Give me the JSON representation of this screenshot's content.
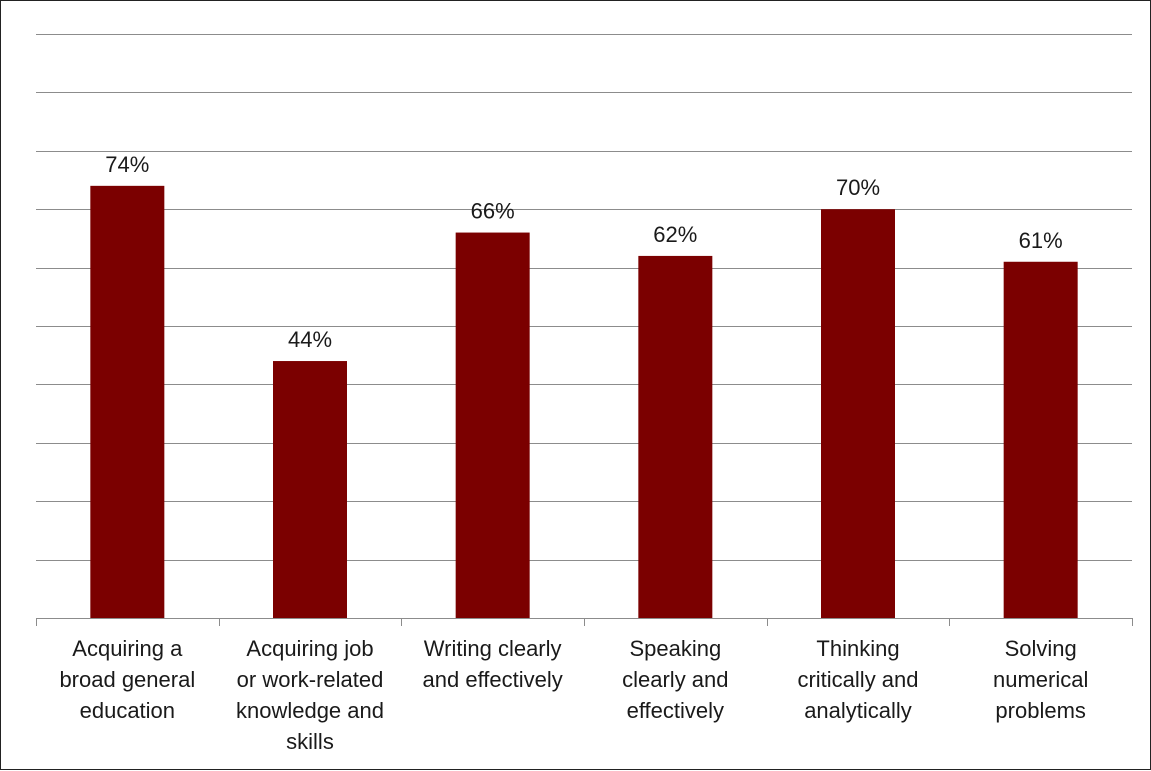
{
  "chart_data": {
    "type": "bar",
    "title": "",
    "xlabel": "",
    "ylabel": "",
    "categories": [
      [
        "Acquiring a",
        "broad general",
        "education"
      ],
      [
        "Acquiring job",
        "or work-related",
        "knowledge and",
        "skills"
      ],
      [
        "Writing clearly",
        "and effectively"
      ],
      [
        "Speaking",
        "clearly and",
        "effectively"
      ],
      [
        "Thinking",
        "critically and",
        "analytically"
      ],
      [
        "Solving",
        "numerical",
        "problems"
      ]
    ],
    "values": [
      74,
      44,
      66,
      62,
      70,
      61
    ],
    "value_labels": [
      "74%",
      "44%",
      "66%",
      "62%",
      "70%",
      "61%"
    ],
    "ylim": [
      0,
      100
    ],
    "gridlines": 10,
    "grid": true,
    "y_tick_labels_shown": false,
    "legend": "none",
    "bar_color": "#7b0000"
  }
}
